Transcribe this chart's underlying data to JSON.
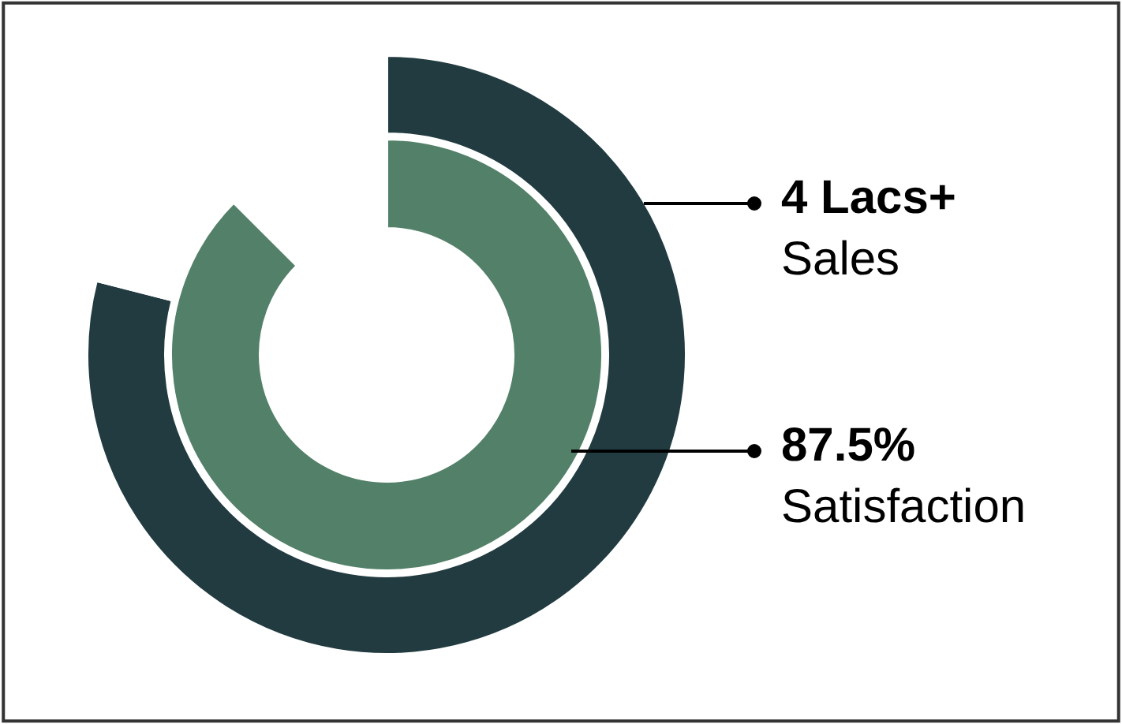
{
  "chart_data": {
    "type": "donut",
    "series": [
      {
        "colors": [
          "#528068",
          "#ffffff"
        ],
        "values": [
          87.5,
          12.5
        ]
      },
      {
        "colors": [
          "#213b40",
          "#ffffff"
        ],
        "values": [
          79,
          21
        ]
      }
    ],
    "annotations": [
      "4 Lacs+",
      "Sales",
      "87.5%",
      "Satisfaction"
    ],
    "legend": false
  }
}
